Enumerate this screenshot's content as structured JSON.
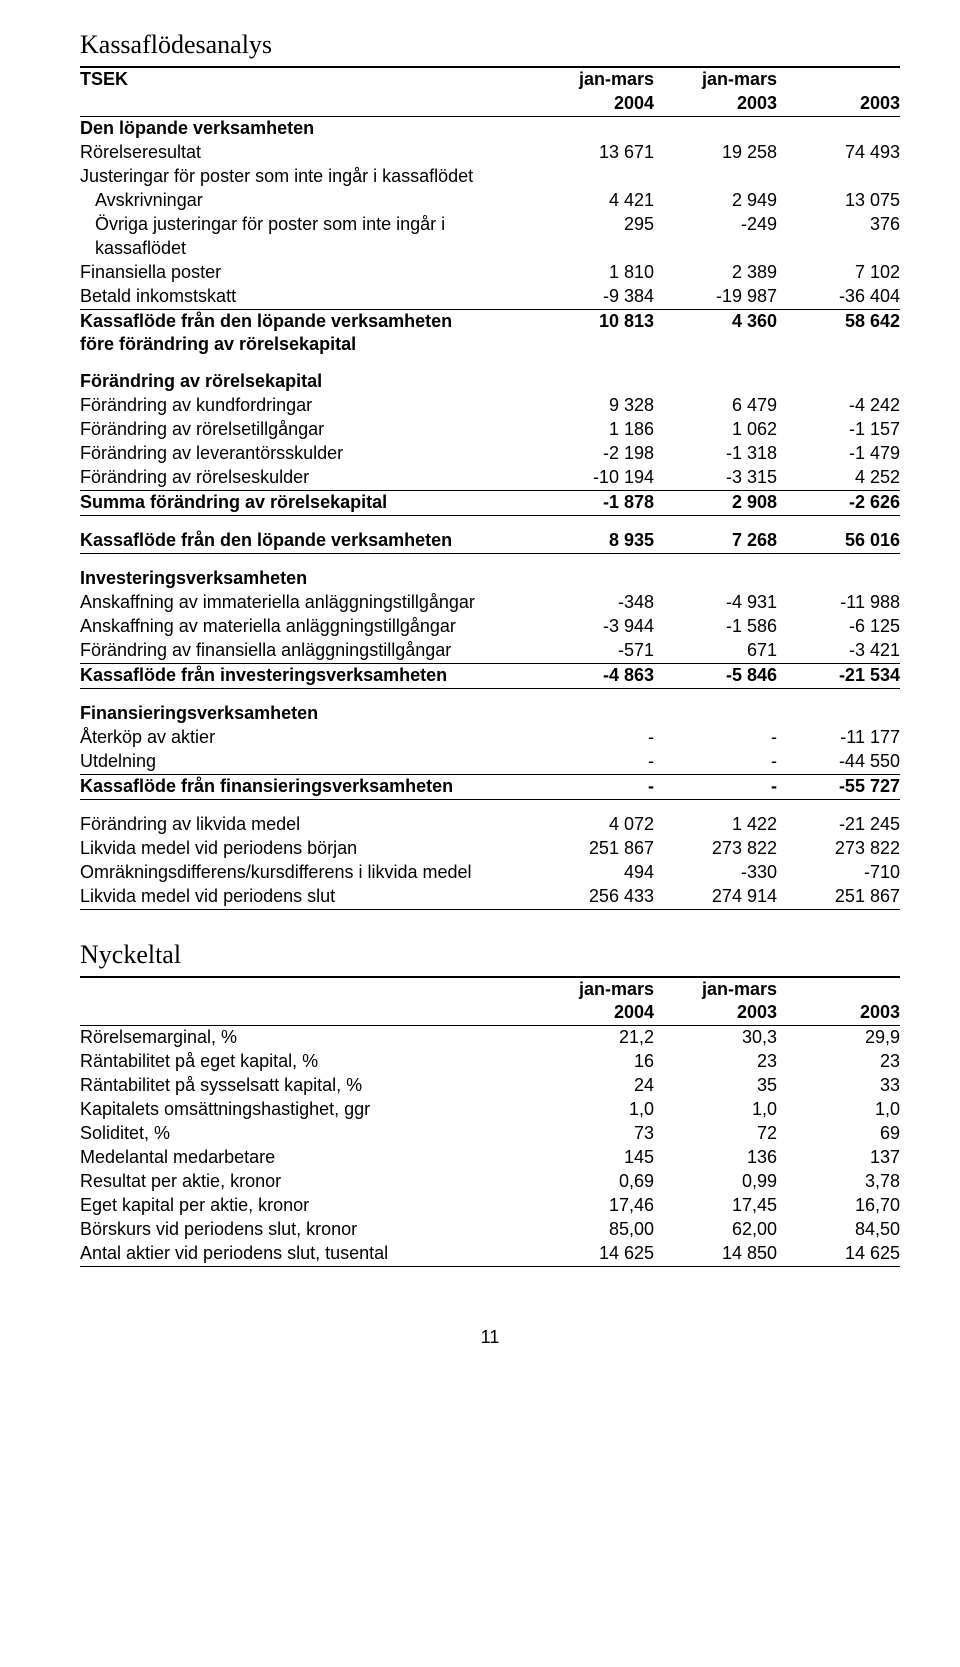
{
  "section1": {
    "title": "Kassaflödesanalys",
    "header": {
      "c0": "TSEK",
      "c1": "jan-mars",
      "c2": "jan-mars",
      "c3": ""
    },
    "header2": {
      "c0": "",
      "c1": "2004",
      "c2": "2003",
      "c3": "2003"
    },
    "rows": [
      {
        "type": "bold top1",
        "c0": "Den löpande verksamheten",
        "c1": "",
        "c2": "",
        "c3": ""
      },
      {
        "type": "",
        "c0": "Rörelseresultat",
        "c1": "13 671",
        "c2": "19 258",
        "c3": "74 493"
      },
      {
        "type": "",
        "c0": "Justeringar för poster som inte ingår i kassaflödet",
        "c1": "",
        "c2": "",
        "c3": ""
      },
      {
        "type": "",
        "c0": "   Avskrivningar",
        "c1": "4 421",
        "c2": "2 949",
        "c3": "13 075"
      },
      {
        "type": "",
        "c0": "   Övriga justeringar för poster som inte ingår i",
        "c1": "295",
        "c2": "-249",
        "c3": "376"
      },
      {
        "type": "",
        "c0": "   kassaflödet",
        "c1": "",
        "c2": "",
        "c3": ""
      },
      {
        "type": "",
        "c0": "Finansiella poster",
        "c1": "1 810",
        "c2": "2 389",
        "c3": "7 102"
      },
      {
        "type": "bot1",
        "c0": "Betald inkomstskatt",
        "c1": "-9 384",
        "c2": "-19 987",
        "c3": "-36 404"
      },
      {
        "type": "bold",
        "c0": "Kassaflöde från den löpande verksamheten",
        "c1": "10 813",
        "c2": "4 360",
        "c3": "58 642"
      },
      {
        "type": "bold",
        "c0": "före förändring av rörelsekapital",
        "c1": "",
        "c2": "",
        "c3": ""
      },
      {
        "type": "bold spacer",
        "c0": "Förändring av rörelsekapital",
        "c1": "",
        "c2": "",
        "c3": ""
      },
      {
        "type": "",
        "c0": "Förändring av kundfordringar",
        "c1": "9 328",
        "c2": "6 479",
        "c3": "-4 242"
      },
      {
        "type": "",
        "c0": "Förändring av rörelsetillgångar",
        "c1": "1 186",
        "c2": "1 062",
        "c3": "-1 157"
      },
      {
        "type": "",
        "c0": "Förändring av leverantörsskulder",
        "c1": "-2 198",
        "c2": "-1 318",
        "c3": "-1 479"
      },
      {
        "type": "bot1",
        "c0": "Förändring av rörelseskulder",
        "c1": "-10 194",
        "c2": "-3 315",
        "c3": "4 252"
      },
      {
        "type": "bold bot1",
        "c0": "Summa förändring av rörelsekapital",
        "c1": "-1 878",
        "c2": "2 908",
        "c3": "-2 626"
      },
      {
        "type": "bold spacer bot1",
        "c0": "Kassaflöde från den löpande verksamheten",
        "c1": "8 935",
        "c2": "7 268",
        "c3": "56 016"
      },
      {
        "type": "bold spacer",
        "c0": "Investeringsverksamheten",
        "c1": "",
        "c2": "",
        "c3": ""
      },
      {
        "type": "",
        "c0": "Anskaffning av immateriella anläggningstillgångar",
        "c1": "-348",
        "c2": "-4 931",
        "c3": "-11 988"
      },
      {
        "type": "",
        "c0": "Anskaffning av materiella anläggningstillgångar",
        "c1": "-3 944",
        "c2": "-1 586",
        "c3": "-6 125"
      },
      {
        "type": "bot1",
        "c0": "Förändring av finansiella anläggningstillgångar",
        "c1": "-571",
        "c2": "671",
        "c3": "-3 421"
      },
      {
        "type": "bold bot1",
        "c0": "Kassaflöde från investeringsverksamheten",
        "c1": "-4 863",
        "c2": "-5 846",
        "c3": "-21 534"
      },
      {
        "type": "bold spacer",
        "c0": "Finansieringsverksamheten",
        "c1": "",
        "c2": "",
        "c3": ""
      },
      {
        "type": "",
        "c0": "Återköp av aktier",
        "c1": "-",
        "c2": "-",
        "c3": "-11 177"
      },
      {
        "type": "bot1",
        "c0": "Utdelning",
        "c1": "-",
        "c2": "-",
        "c3": "-44 550"
      },
      {
        "type": "bold bot1",
        "c0": "Kassaflöde från finansieringsverksamheten",
        "c1": "-",
        "c2": "-",
        "c3": "-55 727"
      },
      {
        "type": "spacer",
        "c0": "Förändring av likvida medel",
        "c1": "4 072",
        "c2": "1 422",
        "c3": "-21 245"
      },
      {
        "type": "",
        "c0": "Likvida medel vid periodens början",
        "c1": "251 867",
        "c2": "273 822",
        "c3": "273 822"
      },
      {
        "type": "",
        "c0": "Omräkningsdifferens/kursdifferens i likvida medel",
        "c1": "494",
        "c2": "-330",
        "c3": "-710"
      },
      {
        "type": "bot1",
        "c0": "Likvida medel vid periodens slut",
        "c1": "256 433",
        "c2": "274 914",
        "c3": "251 867"
      }
    ]
  },
  "section2": {
    "title": "Nyckeltal",
    "header": {
      "c0": "",
      "c1": "jan-mars",
      "c2": "jan-mars",
      "c3": ""
    },
    "header2": {
      "c0": "",
      "c1": "2004",
      "c2": "2003",
      "c3": "2003"
    },
    "rows": [
      {
        "type": "top1",
        "c0": "Rörelsemarginal, %",
        "c1": "21,2",
        "c2": "30,3",
        "c3": "29,9"
      },
      {
        "type": "",
        "c0": "Räntabilitet på eget kapital, %",
        "c1": "16",
        "c2": "23",
        "c3": "23"
      },
      {
        "type": "",
        "c0": "Räntabilitet på sysselsatt kapital, %",
        "c1": "24",
        "c2": "35",
        "c3": "33"
      },
      {
        "type": "",
        "c0": "Kapitalets omsättningshastighet, ggr",
        "c1": "1,0",
        "c2": "1,0",
        "c3": "1,0"
      },
      {
        "type": "",
        "c0": "Soliditet, %",
        "c1": "73",
        "c2": "72",
        "c3": "69"
      },
      {
        "type": "",
        "c0": "Medelantal medarbetare",
        "c1": "145",
        "c2": "136",
        "c3": "137"
      },
      {
        "type": "",
        "c0": "Resultat per aktie, kronor",
        "c1": "0,69",
        "c2": "0,99",
        "c3": "3,78"
      },
      {
        "type": "",
        "c0": "Eget kapital per aktie, kronor",
        "c1": "17,46",
        "c2": "17,45",
        "c3": "16,70"
      },
      {
        "type": "",
        "c0": "Börskurs vid periodens slut, kronor",
        "c1": "85,00",
        "c2": "62,00",
        "c3": "84,50"
      },
      {
        "type": "bot1",
        "c0": "Antal aktier vid periodens slut, tusental",
        "c1": "14 625",
        "c2": "14 850",
        "c3": "14 625"
      }
    ]
  },
  "pageNumber": "11"
}
